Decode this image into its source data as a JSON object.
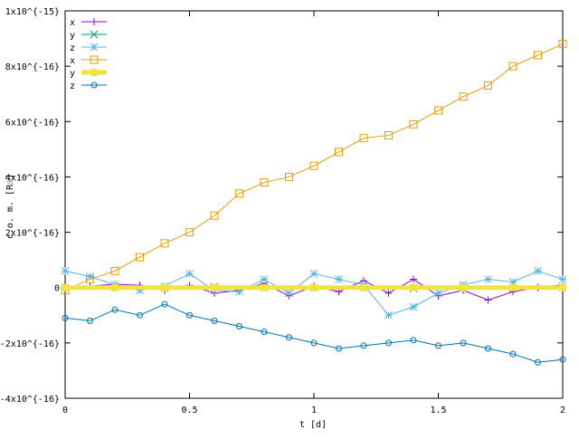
{
  "chart_data": {
    "type": "line",
    "xlabel": "t [d]",
    "ylabel": "c.o. m. [R☉]",
    "xlim": [
      0,
      2
    ],
    "ylim": [
      -4e-16,
      1e-15
    ],
    "grid": false,
    "legend_position": "top-left",
    "x_ticks": [
      {
        "value": 0,
        "label": "0"
      },
      {
        "value": 0.5,
        "label": "0.5"
      },
      {
        "value": 1,
        "label": "1"
      },
      {
        "value": 1.5,
        "label": "1.5"
      },
      {
        "value": 2,
        "label": "2"
      }
    ],
    "y_ticks": [
      {
        "value": -4e-16,
        "label": "-4x10^{-16}"
      },
      {
        "value": -2e-16,
        "label": "-2x10^{-16}"
      },
      {
        "value": 0,
        "label": "0"
      },
      {
        "value": 2e-16,
        "label": "2x10^{-16}"
      },
      {
        "value": 4e-16,
        "label": "4x10^{-16}"
      },
      {
        "value": 6e-16,
        "label": "6x10^{-16}"
      },
      {
        "value": 8e-16,
        "label": "8x10^{-16}"
      },
      {
        "value": 1e-15,
        "label": "1x10^{-15}"
      }
    ],
    "series": [
      {
        "name": "x",
        "color": "#9400d3",
        "marker": "plus",
        "x": [
          0,
          0.1,
          0.2,
          0.3,
          0.4,
          0.5,
          0.6,
          0.7,
          0.8,
          0.9,
          1.0,
          1.1,
          1.2,
          1.3,
          1.4,
          1.5,
          1.6,
          1.7,
          1.8,
          1.9,
          2.0
        ],
        "y": [
          0,
          5e-18,
          1.2e-17,
          8e-18,
          -1e-17,
          8e-18,
          -2e-17,
          -1e-17,
          1.5e-17,
          -3e-17,
          5e-18,
          -1.5e-17,
          2.5e-17,
          -2e-17,
          3e-17,
          -3e-17,
          -1e-17,
          -4.5e-17,
          -1.5e-17,
          0,
          1e-17
        ]
      },
      {
        "name": "y",
        "color": "#009e73",
        "marker": "cross",
        "x": [
          0,
          0.2,
          0.4,
          0.6,
          0.8,
          1.0,
          1.2,
          1.4,
          1.6,
          1.8,
          2.0
        ],
        "y": [
          0,
          2e-18,
          -2e-18,
          3e-18,
          -1e-18,
          0,
          2e-18,
          -3e-18,
          1e-18,
          -2e-18,
          0
        ]
      },
      {
        "name": "z",
        "color": "#56b4e9",
        "marker": "star",
        "x": [
          0,
          0.1,
          0.2,
          0.3,
          0.4,
          0.5,
          0.6,
          0.7,
          0.8,
          0.9,
          1.0,
          1.1,
          1.2,
          1.3,
          1.4,
          1.5,
          1.6,
          1.7,
          1.8,
          1.9,
          2.0
        ],
        "y": [
          6e-17,
          4e-17,
          1e-17,
          -1e-17,
          5e-18,
          5e-17,
          -1e-17,
          -1.5e-17,
          3e-17,
          -2e-17,
          5e-17,
          3e-17,
          1e-17,
          -1e-16,
          -7e-17,
          -2e-17,
          1e-17,
          3e-17,
          2e-17,
          6e-17,
          3e-17
        ]
      },
      {
        "name": "x",
        "color": "#e69f00",
        "marker": "square",
        "x": [
          0,
          0.1,
          0.2,
          0.3,
          0.4,
          0.5,
          0.6,
          0.7,
          0.8,
          0.9,
          1.0,
          1.1,
          1.2,
          1.3,
          1.4,
          1.5,
          1.6,
          1.7,
          1.8,
          1.9,
          2.0
        ],
        "y": [
          -1e-17,
          3e-17,
          6e-17,
          1.1e-16,
          1.6e-16,
          2e-16,
          2.6e-16,
          3.4e-16,
          3.8e-16,
          4e-16,
          4.4e-16,
          4.9e-16,
          5.4e-16,
          5.5e-16,
          5.9e-16,
          6.4e-16,
          6.9e-16,
          7.3e-16,
          8e-16,
          8.4e-16,
          8.8e-16
        ]
      },
      {
        "name": "y",
        "color": "#f0e442",
        "marker": "filled-square",
        "x": [
          0,
          0.2,
          0.4,
          0.6,
          0.8,
          1.0,
          1.2,
          1.4,
          1.6,
          1.8,
          2.0
        ],
        "y": [
          0,
          0,
          0,
          0,
          0,
          0,
          0,
          0,
          0,
          0,
          0
        ]
      },
      {
        "name": "z",
        "color": "#0072b2",
        "marker": "circle",
        "x": [
          0,
          0.1,
          0.2,
          0.3,
          0.4,
          0.5,
          0.6,
          0.7,
          0.8,
          0.9,
          1.0,
          1.1,
          1.2,
          1.3,
          1.4,
          1.5,
          1.6,
          1.7,
          1.8,
          1.9,
          2.0
        ],
        "y": [
          -1.1e-16,
          -1.2e-16,
          -8e-17,
          -1e-16,
          -6e-17,
          -1e-16,
          -1.2e-16,
          -1.4e-16,
          -1.6e-16,
          -1.8e-16,
          -2e-16,
          -2.2e-16,
          -2.1e-16,
          -2e-16,
          -1.9e-16,
          -2.1e-16,
          -2e-16,
          -2.2e-16,
          -2.4e-16,
          -2.7e-16,
          -2.6e-16
        ]
      }
    ]
  }
}
